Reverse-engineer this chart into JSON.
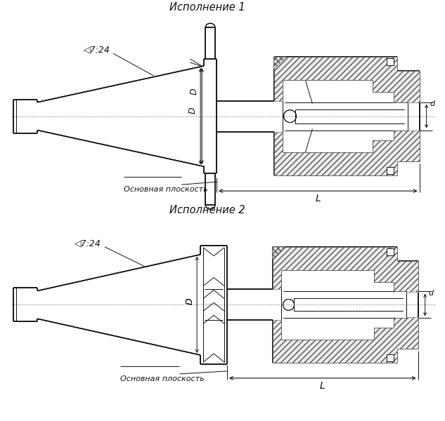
{
  "bg_color": "#ffffff",
  "line_color": "#111111",
  "title1": "Исполнение 1",
  "title2": "Исполнение 2",
  "label_taper": "◁7:24",
  "label_D": "D",
  "label_d": "d",
  "label_L": "L",
  "label_osnov": "Основная плоскость",
  "fig_width": 6.33,
  "fig_height": 6.0,
  "dpi": 100
}
